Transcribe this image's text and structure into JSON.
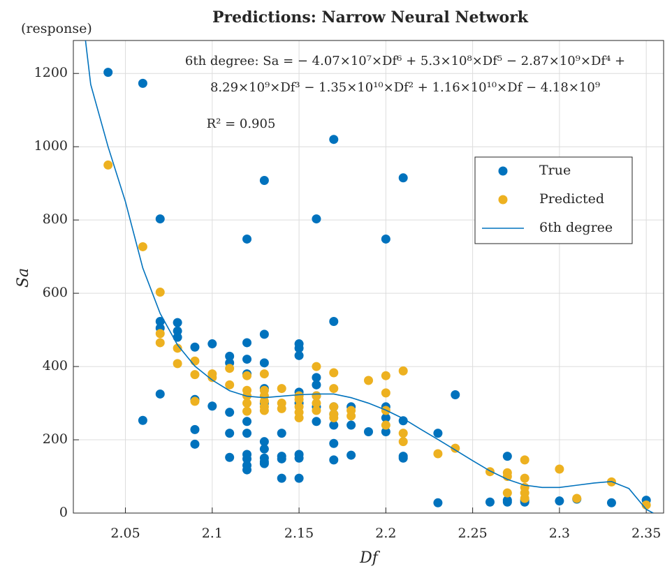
{
  "chart_data": {
    "type": "scatter",
    "title": "Predictions: Narrow Neural Network",
    "y_unit_label": "(response)",
    "x_label": "Df",
    "y_label": "Sa",
    "annotations": [
      "6th degree:  Sa = − 4.07×10⁷×Df⁶ + 5.3×10⁸×Df⁵ − 2.87×10⁹×Df⁴ +",
      "8.29×10⁹×Df³ − 1.35×10¹⁰×Df² + 1.16×10¹⁰×Df − 4.18×10⁹",
      "R² = 0.905"
    ],
    "xlim": [
      2.02,
      2.36
    ],
    "ylim": [
      0,
      1290
    ],
    "xticks": [
      2.05,
      2.1,
      2.15,
      2.2,
      2.25,
      2.3,
      2.35
    ],
    "yticks": [
      0,
      200,
      400,
      600,
      800,
      1000,
      1200
    ],
    "grid": true,
    "legend": "upper right",
    "series": [
      {
        "name": "True",
        "color": "#0072bd",
        "x": [
          2.04,
          2.06,
          2.06,
          2.07,
          2.07,
          2.07,
          2.07,
          2.08,
          2.08,
          2.08,
          2.09,
          2.09,
          2.09,
          2.09,
          2.1,
          2.1,
          2.11,
          2.11,
          2.11,
          2.11,
          2.11,
          2.12,
          2.12,
          2.12,
          2.12,
          2.12,
          2.12,
          2.12,
          2.12,
          2.12,
          2.12,
          2.13,
          2.13,
          2.13,
          2.13,
          2.13,
          2.13,
          2.13,
          2.13,
          2.13,
          2.13,
          2.14,
          2.14,
          2.14,
          2.14,
          2.15,
          2.15,
          2.15,
          2.15,
          2.15,
          2.15,
          2.15,
          2.15,
          2.16,
          2.16,
          2.16,
          2.16,
          2.16,
          2.16,
          2.17,
          2.17,
          2.17,
          2.17,
          2.17,
          2.17,
          2.17,
          2.18,
          2.18,
          2.18,
          2.19,
          2.2,
          2.2,
          2.2,
          2.2,
          2.21,
          2.21,
          2.21,
          2.21,
          2.23,
          2.23,
          2.24,
          2.26,
          2.27,
          2.27,
          2.27,
          2.28,
          2.28,
          2.3,
          2.31,
          2.33,
          2.35
        ],
        "values": [
          1203,
          1173,
          253,
          803,
          523,
          505,
          325,
          520,
          497,
          480,
          453,
          310,
          228,
          188,
          462,
          292,
          428,
          410,
          275,
          218,
          152,
          748,
          465,
          420,
          380,
          250,
          218,
          160,
          148,
          130,
          118,
          908,
          488,
          410,
          340,
          300,
          195,
          175,
          150,
          140,
          135,
          218,
          155,
          148,
          95,
          462,
          450,
          430,
          330,
          300,
          160,
          150,
          95,
          803,
          370,
          350,
          320,
          290,
          250,
          1020,
          523,
          290,
          270,
          240,
          190,
          145,
          290,
          240,
          158,
          222,
          748,
          290,
          260,
          222,
          915,
          252,
          155,
          150,
          218,
          28,
          323,
          30,
          155,
          35,
          30,
          35,
          30,
          33,
          38,
          28,
          35
        ]
      },
      {
        "name": "Predicted",
        "color": "#edb120",
        "x": [
          2.04,
          2.06,
          2.07,
          2.07,
          2.07,
          2.08,
          2.08,
          2.09,
          2.09,
          2.09,
          2.1,
          2.1,
          2.11,
          2.11,
          2.12,
          2.12,
          2.12,
          2.12,
          2.12,
          2.13,
          2.13,
          2.13,
          2.13,
          2.13,
          2.13,
          2.14,
          2.14,
          2.14,
          2.15,
          2.15,
          2.15,
          2.15,
          2.15,
          2.16,
          2.16,
          2.16,
          2.16,
          2.17,
          2.17,
          2.17,
          2.17,
          2.17,
          2.18,
          2.18,
          2.19,
          2.2,
          2.2,
          2.2,
          2.2,
          2.21,
          2.21,
          2.21,
          2.23,
          2.24,
          2.26,
          2.27,
          2.27,
          2.27,
          2.28,
          2.28,
          2.28,
          2.28,
          2.28,
          2.3,
          2.31,
          2.33,
          2.35
        ],
        "values": [
          950,
          727,
          603,
          490,
          465,
          450,
          408,
          415,
          378,
          305,
          380,
          370,
          395,
          350,
          375,
          335,
          320,
          300,
          278,
          380,
          335,
          320,
          305,
          290,
          280,
          340,
          300,
          285,
          320,
          310,
          290,
          275,
          260,
          400,
          320,
          300,
          280,
          383,
          340,
          290,
          270,
          260,
          280,
          265,
          362,
          375,
          328,
          280,
          240,
          388,
          218,
          195,
          162,
          177,
          113,
          110,
          100,
          55,
          145,
          95,
          70,
          55,
          40,
          120,
          40,
          85,
          22
        ]
      },
      {
        "name": "6th degree",
        "color": "#0072bd",
        "kind": "line",
        "x": [
          2.027,
          2.03,
          2.04,
          2.05,
          2.06,
          2.07,
          2.08,
          2.09,
          2.1,
          2.11,
          2.12,
          2.13,
          2.14,
          2.15,
          2.16,
          2.17,
          2.18,
          2.19,
          2.2,
          2.21,
          2.22,
          2.23,
          2.24,
          2.25,
          2.26,
          2.27,
          2.28,
          2.29,
          2.3,
          2.31,
          2.32,
          2.33,
          2.34,
          2.35,
          2.354
        ],
        "values": [
          1290,
          1170,
          1000,
          850,
          669,
          545,
          459,
          401,
          363,
          334,
          319,
          315,
          319,
          323,
          325,
          325,
          315,
          300,
          281,
          258,
          229,
          201,
          172,
          143,
          115,
          92,
          76,
          70,
          70,
          76,
          82,
          86,
          67,
          10,
          0
        ]
      }
    ]
  }
}
